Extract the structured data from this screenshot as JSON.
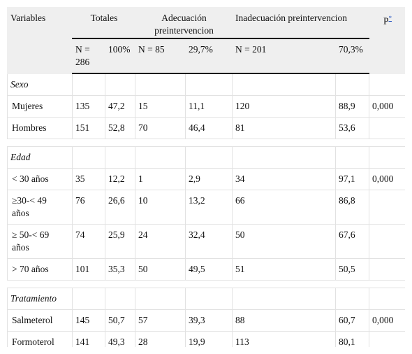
{
  "table": {
    "columns": [
      "Variables",
      "Totales",
      "Adecuación preintervencion",
      "Inadecuación preintervencion"
    ],
    "p": "P",
    "p_note": "*",
    "subheaders": [
      "N = 286",
      "100%",
      "N = 85",
      "29,7%",
      "N = 201",
      "70,3%"
    ],
    "sections": [
      {
        "title": "Sexo",
        "rows": [
          [
            "Mujeres",
            "135",
            "47,2",
            "15",
            "11,1",
            "120",
            "88,9",
            "0,000"
          ],
          [
            "Hombres",
            "151",
            "52,8",
            "70",
            "46,4",
            "81",
            "53,6"
          ]
        ]
      },
      {
        "title": "Edad",
        "rows": [
          [
            "< 30 años",
            "35",
            "12,2",
            "1",
            "2,9",
            "34",
            "97,1",
            "0,000"
          ],
          [
            "≥30-< 49 años",
            "76",
            "26,6",
            "10",
            "13,2",
            "66",
            "86,8"
          ],
          [
            "≥ 50-< 69 años",
            "74",
            "25,9",
            "24",
            "32,4",
            "50",
            "67,6"
          ],
          [
            "> 70 años",
            "101",
            "35,3",
            "50",
            "49,5",
            "51",
            "50,5"
          ]
        ]
      },
      {
        "title": "Tratamiento",
        "rows": [
          [
            "Salmeterol",
            "145",
            "50,7",
            "57",
            "39,3",
            "88",
            "60,7",
            "0,000"
          ],
          [
            "Formoterol",
            "141",
            "49,3",
            "28",
            "19,9",
            "113",
            "80,1"
          ]
        ]
      }
    ]
  }
}
